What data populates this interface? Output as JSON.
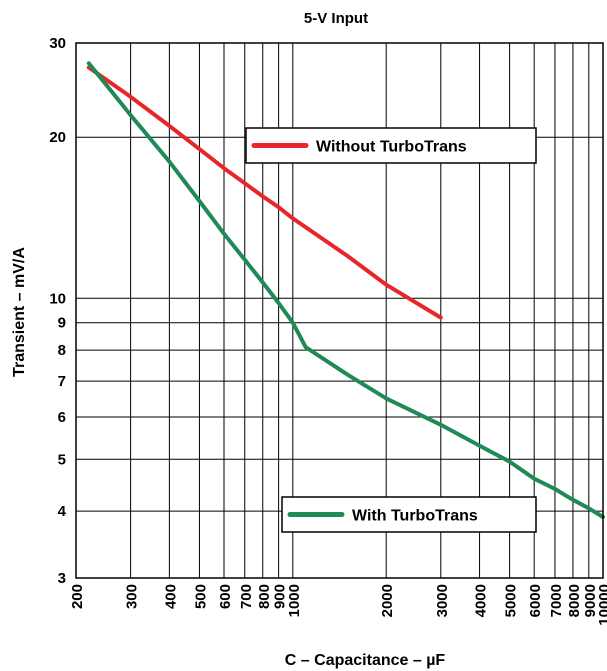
{
  "chart_data": {
    "type": "line",
    "title": "5-V Input",
    "xlabel": "C – Capacitance – µF",
    "ylabel": "Transient – mV/A",
    "xscale": "log",
    "yscale": "log",
    "xlim": [
      200,
      10000
    ],
    "ylim": [
      3,
      30
    ],
    "grid": true,
    "y_tick_labels": [
      "3",
      "4",
      "5",
      "6",
      "7",
      "8",
      "9",
      "10",
      "20",
      "30"
    ],
    "x_tick_labels": [
      "200",
      "300",
      "400",
      "500",
      "600",
      "700",
      "800",
      "900",
      "1000",
      "2000",
      "3000",
      "4000",
      "5000",
      "6000",
      "7000",
      "8000",
      "9000",
      "10000"
    ],
    "series": [
      {
        "name": "Without TurboTrans",
        "color": "#e8262a",
        "x": [
          220,
          300,
          400,
          500,
          600,
          700,
          800,
          900,
          1000,
          1500,
          2000,
          3000
        ],
        "y": [
          27,
          23.8,
          21.0,
          19.0,
          17.5,
          16.4,
          15.5,
          14.8,
          14.1,
          12.0,
          10.6,
          9.2
        ]
      },
      {
        "name": "With TurboTrans",
        "color": "#1f8a56",
        "x": [
          220,
          300,
          400,
          500,
          600,
          700,
          800,
          900,
          1000,
          1100,
          1500,
          2000,
          3000,
          4000,
          5000,
          6000,
          7000,
          8000,
          9000,
          10000
        ],
        "y": [
          27.5,
          22.0,
          18.0,
          15.2,
          13.2,
          11.8,
          10.7,
          9.8,
          9.0,
          8.1,
          7.2,
          6.5,
          5.8,
          5.3,
          4.95,
          4.6,
          4.4,
          4.2,
          4.05,
          3.9
        ]
      }
    ],
    "legend": [
      {
        "label": "Without TurboTrans",
        "color": "#e8262a",
        "placement": "upper-right"
      },
      {
        "label": "With TurboTrans",
        "color": "#1f8a56",
        "placement": "lower-right"
      }
    ]
  }
}
